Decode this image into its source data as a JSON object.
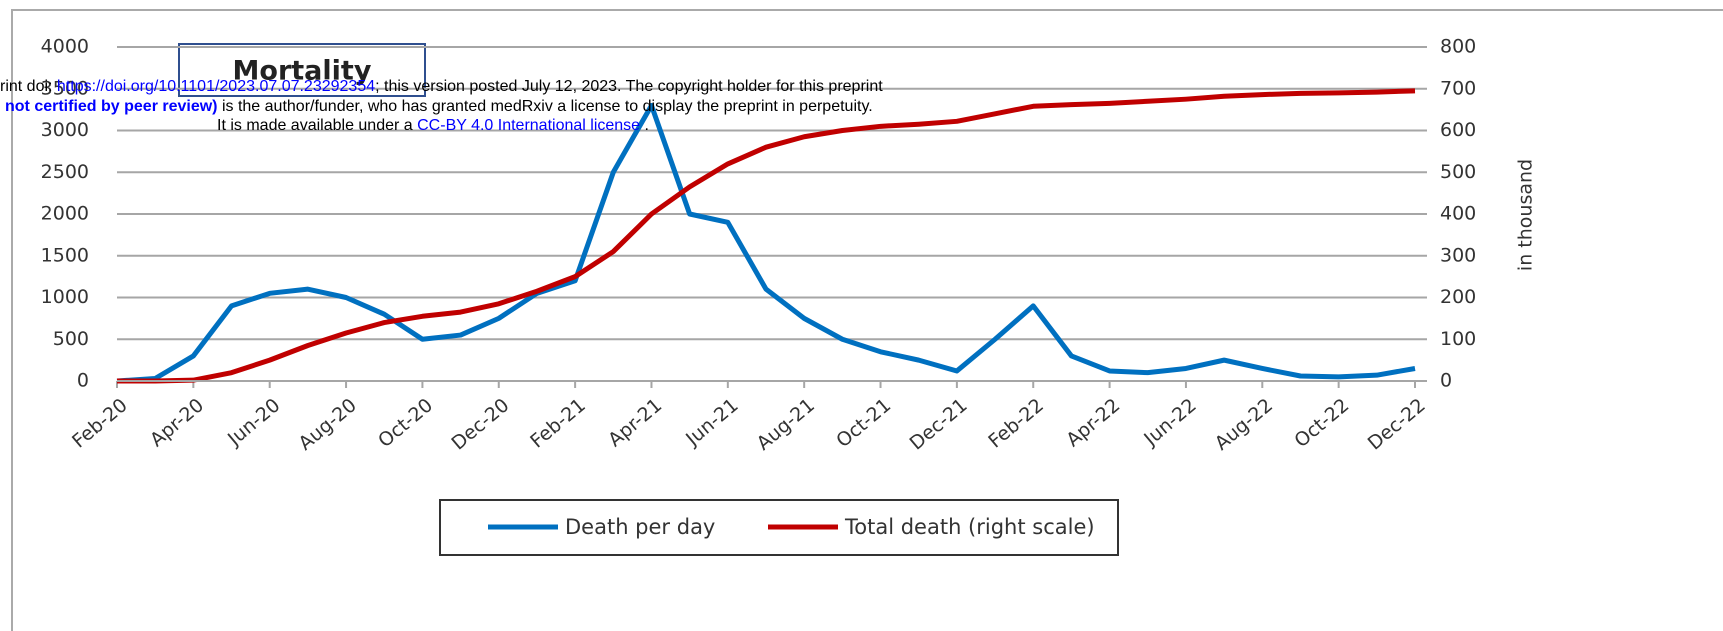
{
  "chart_data": {
    "type": "line",
    "title": "Mortality",
    "categories": [
      "Feb-20",
      null,
      "Apr-20",
      null,
      "Jun-20",
      null,
      "Aug-20",
      null,
      "Oct-20",
      null,
      "Dec-20",
      null,
      "Feb-21",
      null,
      "Apr-21",
      null,
      "Jun-21",
      null,
      "Aug-21",
      null,
      "Oct-21",
      null,
      "Dec-21",
      null,
      "Feb-22",
      null,
      "Apr-22",
      null,
      "Jun-22",
      null,
      "Aug-22",
      null,
      "Oct-22",
      null,
      "Dec-22"
    ],
    "series": [
      {
        "name": "Death per day",
        "color": "#0070c0",
        "values": [
          0,
          30,
          300,
          900,
          1050,
          1100,
          1000,
          800,
          500,
          550,
          750,
          1050,
          1200,
          2500,
          3300,
          2000,
          1900,
          1100,
          750,
          500,
          350,
          250,
          120,
          500,
          900,
          300,
          120,
          100,
          150,
          250,
          150,
          60,
          50,
          70,
          150
        ]
      },
      {
        "name": "Total death (right scale)",
        "color": "#c00000",
        "axis": "y2",
        "values": [
          0,
          0,
          2,
          20,
          50,
          85,
          115,
          140,
          155,
          165,
          185,
          215,
          250,
          310,
          400,
          465,
          520,
          560,
          585,
          600,
          610,
          615,
          622,
          640,
          658,
          662,
          665,
          670,
          675,
          682,
          686,
          689,
          690,
          692,
          695
        ]
      }
    ],
    "ylim": [
      0,
      4000
    ],
    "yticks": [
      0,
      500,
      1000,
      1500,
      2000,
      2500,
      3000,
      3500,
      4000
    ],
    "y2lim": [
      0,
      800
    ],
    "y2ticks": [
      0,
      100,
      200,
      300,
      400,
      500,
      600,
      700,
      800
    ],
    "y2label": "in thousand",
    "grid": true,
    "legend": "bottom"
  },
  "watermark": {
    "line1": [
      "rint doi: ",
      "https://doi.org/10.1101/2023.07.07.23292354",
      "; this version posted July 12, 2023. The copyright holder for this preprint"
    ],
    "line2": [
      "not certified by peer review)",
      " is the author/funder, who has granted medRxiv a license to display the preprint in perpetuity."
    ],
    "line3": [
      "It is made available under a ",
      "CC-BY 4.0 International license",
      " ."
    ]
  }
}
